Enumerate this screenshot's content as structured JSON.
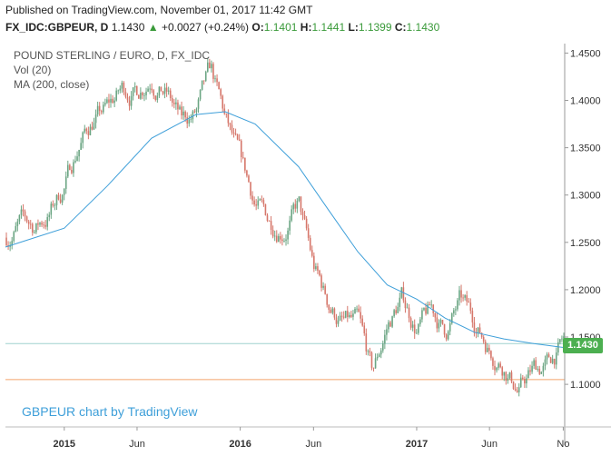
{
  "header": {
    "publish_text": "Published on TradingView.com, November 01, 2017 11:42 GMT",
    "symbol": "FX_IDC:GBPEUR, D",
    "last": "1.1430",
    "change_arrow": "▲",
    "change": "+0.0027 (+0.24%)",
    "o_label": "O:",
    "o_value": "1.1401",
    "h_label": "H:",
    "h_value": "1.1441",
    "l_label": "L:",
    "l_value": "1.1399",
    "c_label": "C:",
    "c_value": "1.1430"
  },
  "legend": {
    "title": "POUND STERLING / EURO, D, FX_IDC",
    "vol": "Vol (20)",
    "ma": "MA (200, close)"
  },
  "watermark": "GBPEUR chart by TradingView",
  "price_tag": "1.1430",
  "colors": {
    "up": "#4caf50",
    "ma_line": "#3e9fd9",
    "hline_orange": "#f3a46b",
    "hline_teal": "#9fd2cf",
    "candle_up": "#6ba583",
    "candle_down": "#d6776b"
  },
  "chart_data": {
    "type": "candlestick",
    "title": "POUND STERLING / EURO, D, FX_IDC",
    "ylim": [
      1.055,
      1.46
    ],
    "y_ticks": [
      "1.1000",
      "1.1500",
      "1.2000",
      "1.2500",
      "1.3000",
      "1.3500",
      "1.4000",
      "1.4500"
    ],
    "x_ticks": [
      {
        "label": "2015",
        "bold": true
      },
      {
        "label": "Jun",
        "bold": false
      },
      {
        "label": "2016",
        "bold": true
      },
      {
        "label": "Jun",
        "bold": false
      },
      {
        "label": "2017",
        "bold": true
      },
      {
        "label": "Jun",
        "bold": false
      },
      {
        "label": "No",
        "bold": false
      }
    ],
    "price_path": [
      [
        "2014-09",
        1.255
      ],
      [
        "2014-10",
        1.27
      ],
      [
        "2014-11",
        1.265
      ],
      [
        "2014-12",
        1.28
      ],
      [
        "2015-01",
        1.31
      ],
      [
        "2015-02",
        1.355
      ],
      [
        "2015-03",
        1.38
      ],
      [
        "2015-04",
        1.39
      ],
      [
        "2015-05",
        1.41
      ],
      [
        "2015-06",
        1.41
      ],
      [
        "2015-07",
        1.43
      ],
      [
        "2015-08",
        1.41
      ],
      [
        "2015-09",
        1.375
      ],
      [
        "2015-10",
        1.385
      ],
      [
        "2015-11",
        1.425
      ],
      [
        "2015-12",
        1.375
      ],
      [
        "2016-01",
        1.33
      ],
      [
        "2016-02",
        1.29
      ],
      [
        "2016-03",
        1.27
      ],
      [
        "2016-04",
        1.27
      ],
      [
        "2016-05",
        1.29
      ],
      [
        "2016-06",
        1.22
      ],
      [
        "2016-07",
        1.185
      ],
      [
        "2016-08",
        1.165
      ],
      [
        "2016-09",
        1.16
      ],
      [
        "2016-10",
        1.105
      ],
      [
        "2016-11",
        1.16
      ],
      [
        "2016-12",
        1.19
      ],
      [
        "2017-01",
        1.16
      ],
      [
        "2017-02",
        1.175
      ],
      [
        "2017-03",
        1.155
      ],
      [
        "2017-04",
        1.185
      ],
      [
        "2017-05",
        1.165
      ],
      [
        "2017-06",
        1.14
      ],
      [
        "2017-07",
        1.125
      ],
      [
        "2017-08",
        1.095
      ],
      [
        "2017-09",
        1.115
      ],
      [
        "2017-10",
        1.12
      ],
      [
        "2017-11",
        1.143
      ]
    ],
    "ma_200": [
      [
        "2014-09",
        1.245
      ],
      [
        "2015-01",
        1.265
      ],
      [
        "2015-04",
        1.31
      ],
      [
        "2015-07",
        1.36
      ],
      [
        "2015-10",
        1.385
      ],
      [
        "2015-12",
        1.388
      ],
      [
        "2016-02",
        1.375
      ],
      [
        "2016-05",
        1.33
      ],
      [
        "2016-07",
        1.285
      ],
      [
        "2016-09",
        1.24
      ],
      [
        "2016-11",
        1.205
      ],
      [
        "2017-01",
        1.19
      ],
      [
        "2017-03",
        1.17
      ],
      [
        "2017-05",
        1.155
      ],
      [
        "2017-07",
        1.148
      ],
      [
        "2017-09",
        1.143
      ],
      [
        "2017-11",
        1.139
      ]
    ],
    "hlines": [
      {
        "value": 1.143,
        "color": "teal"
      },
      {
        "value": 1.105,
        "color": "orange"
      }
    ]
  }
}
